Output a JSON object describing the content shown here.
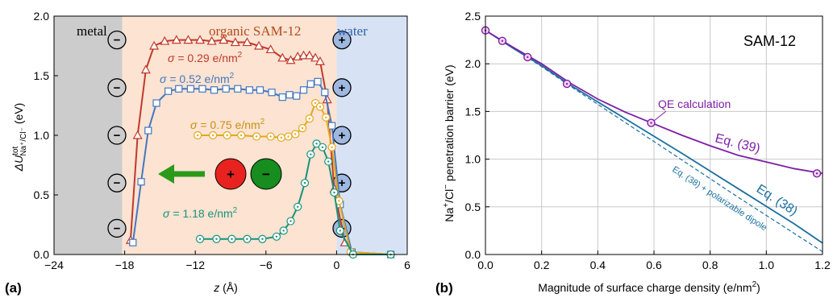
{
  "colors": {
    "metal_bg": "#cccccc",
    "sam_bg": "#fce3d2",
    "water_bg": "#d7e3f4",
    "red": "#c0392b",
    "blue": "#4477c0",
    "orange": "#e4a81a",
    "green": "#17937a",
    "purple": "#7d1fa6",
    "teal": "#1a6fa0",
    "ion_red": "#e8231f",
    "ion_green": "#178c1f",
    "arrow": "#2a9a1a"
  },
  "panel_a": {
    "label": "a",
    "xlabel": "z (Å)",
    "ylabel_main": "ΔU",
    "ylabel_sup": "tot",
    "ylabel_sub": "Na⁺/Cl⁻",
    "ylabel_unit": "(eV)",
    "regions": {
      "metal": "metal",
      "sam": "organic SAM-12",
      "water": "water"
    },
    "minus_sign": "−",
    "plus_sign": "+",
    "ion_plus": "+",
    "ion_minus": "−"
  },
  "panel_b": {
    "label": "b",
    "corner_label": "SAM-12",
    "ylabel": "Na⁺/Cl⁻ penetration barrier (eV)",
    "xlabel": "Magnitude of surface charge density (e/nm²)",
    "ann_qe": "QE calculation",
    "ann_eq39": "Eq. (39)",
    "ann_eq38": "Eq. (38)",
    "ann_eq38p": "Eq. (38) + polarizable dipole"
  },
  "chart_data": [
    {
      "type": "line",
      "panel": "a",
      "xlim": [
        -24,
        6
      ],
      "ylim": [
        0,
        2
      ],
      "xticks": [
        -24,
        -18,
        -12,
        -6,
        0,
        6
      ],
      "yticks": [
        0,
        0.5,
        1.0,
        1.5,
        2.0
      ],
      "ytick_labels": [
        "0.0",
        "0.5",
        "1.0",
        "1.5",
        "2.0"
      ],
      "xtick_labels": [
        "−24",
        "−18",
        "−12",
        "−6",
        "0",
        "6"
      ],
      "regions": [
        {
          "name": "metal",
          "from": -24,
          "to": -18.2
        },
        {
          "name": "organic SAM-12",
          "from": -18.2,
          "to": 0
        },
        {
          "name": "water",
          "from": 0,
          "to": 6
        }
      ],
      "series": [
        {
          "name": "σ = 0.29 e/nm²",
          "color": "#c0392b",
          "marker": "triangle",
          "x": [
            -17.5,
            -16.9,
            -16.2,
            -15.5,
            -14.6,
            -13.6,
            -12.6,
            -11.6,
            -10.6,
            -9.6,
            -8.6,
            -7.6,
            -6.6,
            -5.6,
            -4.6,
            -3.9,
            -3.3,
            -2.8,
            -2.3,
            -1.8,
            -1.4,
            -0.8,
            -0.2,
            0.7
          ],
          "y": [
            0.12,
            1.0,
            1.55,
            1.75,
            1.79,
            1.8,
            1.8,
            1.8,
            1.79,
            1.8,
            1.78,
            1.78,
            1.75,
            1.72,
            1.65,
            1.63,
            1.66,
            1.67,
            1.67,
            1.65,
            1.62,
            1.3,
            0.55,
            0.1
          ]
        },
        {
          "name": "σ = 0.52 e/nm²",
          "color": "#4477c0",
          "marker": "square",
          "x": [
            -17.3,
            -16.6,
            -16.0,
            -15.3,
            -14.3,
            -13.4,
            -12.4,
            -11.4,
            -10.4,
            -9.4,
            -8.4,
            -7.4,
            -6.5,
            -5.5,
            -4.6,
            -4.0,
            -3.4,
            -2.8,
            -2.2,
            -1.6,
            -1.0,
            -0.4,
            0.3,
            1.3,
            4.6
          ],
          "y": [
            0.1,
            0.61,
            1.04,
            1.27,
            1.37,
            1.39,
            1.39,
            1.39,
            1.38,
            1.39,
            1.39,
            1.38,
            1.38,
            1.36,
            1.32,
            1.34,
            1.33,
            1.38,
            1.43,
            1.45,
            1.36,
            1.08,
            0.42,
            0.02,
            0.0
          ]
        },
        {
          "name": "σ = 0.75 e/nm²",
          "color": "#e4a81a",
          "marker": "circle",
          "x": [
            -11.8,
            -10.5,
            -9.3,
            -8.1,
            -6.8,
            -5.6,
            -4.7,
            -4.1,
            -3.5,
            -2.9,
            -2.3,
            -1.8,
            -1.4,
            -0.9,
            -0.4,
            0.2,
            1.2,
            4.6
          ],
          "y": [
            1.0,
            1.0,
            1.0,
            1.0,
            0.99,
            0.99,
            0.98,
            0.99,
            1.01,
            1.06,
            1.14,
            1.27,
            1.24,
            1.15,
            0.9,
            0.45,
            0.02,
            0.0
          ]
        },
        {
          "name": "σ = 1.18 e/nm²",
          "color": "#17937a",
          "marker": "circle",
          "x": [
            -11.6,
            -10.2,
            -8.9,
            -7.6,
            -6.3,
            -5.1,
            -4.5,
            -3.9,
            -3.3,
            -2.7,
            -2.2,
            -1.7,
            -1.2,
            -0.7,
            -0.2,
            0.3,
            1.4,
            4.6
          ],
          "y": [
            0.13,
            0.13,
            0.13,
            0.13,
            0.13,
            0.15,
            0.2,
            0.28,
            0.4,
            0.6,
            0.84,
            0.93,
            0.9,
            0.78,
            0.52,
            0.2,
            0.0,
            0.0
          ]
        }
      ]
    },
    {
      "type": "line",
      "panel": "b",
      "xlim": [
        0,
        1.2
      ],
      "ylim": [
        0,
        2.5
      ],
      "xticks": [
        0,
        0.2,
        0.4,
        0.6,
        0.8,
        1.0,
        1.2
      ],
      "xtick_labels": [
        "0.0",
        "0.2",
        "0.4",
        "0.6",
        "0.8",
        "1.0",
        "1.2"
      ],
      "yticks": [
        0,
        0.5,
        1.0,
        1.5,
        2.0,
        2.5
      ],
      "ytick_labels": [
        "0.0",
        "0.5",
        "1.0",
        "1.5",
        "2.0",
        "2.5"
      ],
      "grid": true,
      "series": [
        {
          "name": "QE calculation",
          "color": "#7d1fa6",
          "marker": "circle",
          "x": [
            0.0,
            0.06,
            0.15,
            0.29,
            0.59,
            1.18
          ],
          "y": [
            2.35,
            2.24,
            2.07,
            1.79,
            1.38,
            0.85
          ]
        },
        {
          "name": "Eq. (39)",
          "color": "#7d1fa6",
          "marker": "none",
          "x": [
            0.0,
            0.1,
            0.2,
            0.3,
            0.4,
            0.5,
            0.6,
            0.7,
            0.8,
            0.9,
            1.0,
            1.1,
            1.2
          ],
          "y": [
            2.35,
            2.17,
            2.0,
            1.8,
            1.63,
            1.49,
            1.37,
            1.25,
            1.14,
            1.04,
            0.97,
            0.9,
            0.85
          ]
        },
        {
          "name": "Eq. (38)",
          "color": "#1a6fa0",
          "marker": "none",
          "x": [
            0.0,
            0.1,
            0.2,
            0.3,
            0.5,
            0.7,
            0.9,
            1.1,
            1.2
          ],
          "y": [
            2.35,
            2.16,
            1.98,
            1.78,
            1.42,
            1.06,
            0.69,
            0.32,
            0.12
          ]
        },
        {
          "name": "Eq. (38) + polarizable dipole",
          "color": "#1a6fa0",
          "marker": "none",
          "dashed": true,
          "x": [
            0.0,
            0.1,
            0.2,
            0.3,
            0.5,
            0.7,
            0.9,
            1.1,
            1.2
          ],
          "y": [
            2.35,
            2.16,
            1.97,
            1.77,
            1.38,
            0.99,
            0.6,
            0.22,
            0.03
          ]
        }
      ]
    }
  ]
}
